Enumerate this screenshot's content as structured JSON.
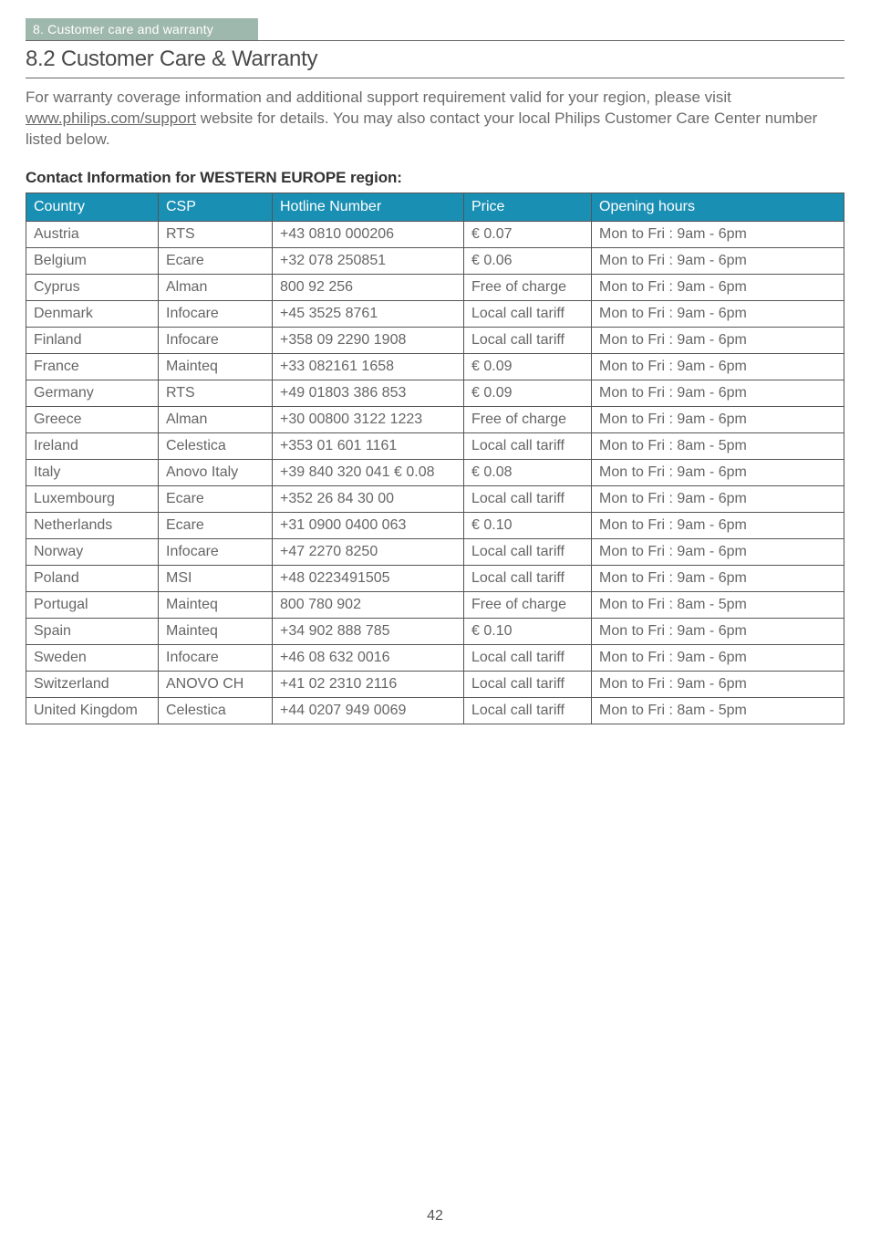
{
  "header_bar": "8. Customer care and warranty",
  "section_title": "8.2  Customer Care & Warranty",
  "intro_pre": "For warranty coverage information and additional support requirement valid for your region, please visit ",
  "intro_link": "www.philips.com/support",
  "intro_post": " website for details. You may also contact your local Philips Customer Care Center number listed below.",
  "table_caption": "Contact Information for WESTERN EUROPE region:",
  "columns": {
    "country": "Country",
    "csp": "CSP",
    "hotline": "Hotline Number",
    "price": "Price",
    "hours": "Opening hours"
  },
  "rows": [
    {
      "country": "Austria",
      "csp": "RTS",
      "hotline": "+43 0810 000206",
      "price": "€ 0.07",
      "hours": "Mon to Fri : 9am - 6pm"
    },
    {
      "country": "Belgium",
      "csp": "Ecare",
      "hotline": "+32 078 250851",
      "price": "€ 0.06",
      "hours": "Mon to Fri : 9am - 6pm"
    },
    {
      "country": "Cyprus",
      "csp": "Alman",
      "hotline": "800 92 256",
      "price": "Free of charge",
      "hours": "Mon to Fri : 9am - 6pm"
    },
    {
      "country": "Denmark",
      "csp": "Infocare",
      "hotline": "+45 3525 8761",
      "price": "Local call tariff",
      "hours": "Mon to Fri : 9am - 6pm"
    },
    {
      "country": "Finland",
      "csp": "Infocare",
      "hotline": "+358 09 2290 1908",
      "price": "Local call tariff",
      "hours": "Mon to Fri : 9am - 6pm"
    },
    {
      "country": "France",
      "csp": "Mainteq",
      "hotline": "+33 082161 1658",
      "price": "€ 0.09",
      "hours": "Mon to Fri : 9am - 6pm"
    },
    {
      "country": "Germany",
      "csp": "RTS",
      "hotline": "+49 01803 386 853",
      "price": "€ 0.09",
      "hours": "Mon to Fri : 9am - 6pm"
    },
    {
      "country": "Greece",
      "csp": "Alman",
      "hotline": "+30 00800 3122 1223",
      "price": "Free of charge",
      "hours": "Mon to Fri : 9am - 6pm"
    },
    {
      "country": "Ireland",
      "csp": "Celestica",
      "hotline": "+353 01 601 1161",
      "price": "Local call tariff",
      "hours": "Mon to Fri : 8am - 5pm"
    },
    {
      "country": "Italy",
      "csp": "Anovo Italy",
      "hotline": "+39 840 320 041 € 0.08",
      "price": "€ 0.08",
      "hours": "Mon to Fri : 9am - 6pm"
    },
    {
      "country": "Luxembourg",
      "csp": "Ecare",
      "hotline": "+352 26 84 30 00",
      "price": "Local call tariff",
      "hours": "Mon to Fri : 9am - 6pm"
    },
    {
      "country": "Netherlands",
      "csp": "Ecare",
      "hotline": "+31 0900 0400 063",
      "price": "€ 0.10",
      "hours": "Mon to Fri : 9am - 6pm"
    },
    {
      "country": "Norway",
      "csp": "Infocare",
      "hotline": "+47 2270 8250",
      "price": "Local call tariff",
      "hours": "Mon to Fri : 9am - 6pm"
    },
    {
      "country": "Poland",
      "csp": "MSI",
      "hotline": "+48 0223491505",
      "price": "Local call tariff",
      "hours": "Mon to Fri : 9am - 6pm"
    },
    {
      "country": "Portugal",
      "csp": "Mainteq",
      "hotline": "800 780 902",
      "price": "Free of charge",
      "hours": "Mon to Fri : 8am - 5pm"
    },
    {
      "country": "Spain",
      "csp": "Mainteq",
      "hotline": "+34 902 888 785",
      "price": "€ 0.10",
      "hours": "Mon to Fri : 9am - 6pm"
    },
    {
      "country": "Sweden",
      "csp": "Infocare",
      "hotline": "+46 08 632 0016",
      "price": "Local call tariff",
      "hours": "Mon to Fri : 9am - 6pm"
    },
    {
      "country": "Switzerland",
      "csp": "ANOVO CH",
      "hotline": "+41 02 2310 2116",
      "price": "Local call tariff",
      "hours": "Mon to Fri : 9am - 6pm"
    },
    {
      "country": "United Kingdom",
      "csp": "Celestica",
      "hotline": "+44 0207 949 0069",
      "price": "Local call tariff",
      "hours": "Mon to Fri : 8am - 5pm"
    }
  ],
  "page_number": "42",
  "colors": {
    "header_bar_bg": "#9fb8ae",
    "table_header_bg": "#1a8fb4",
    "border": "#555555",
    "text": "#555555"
  }
}
